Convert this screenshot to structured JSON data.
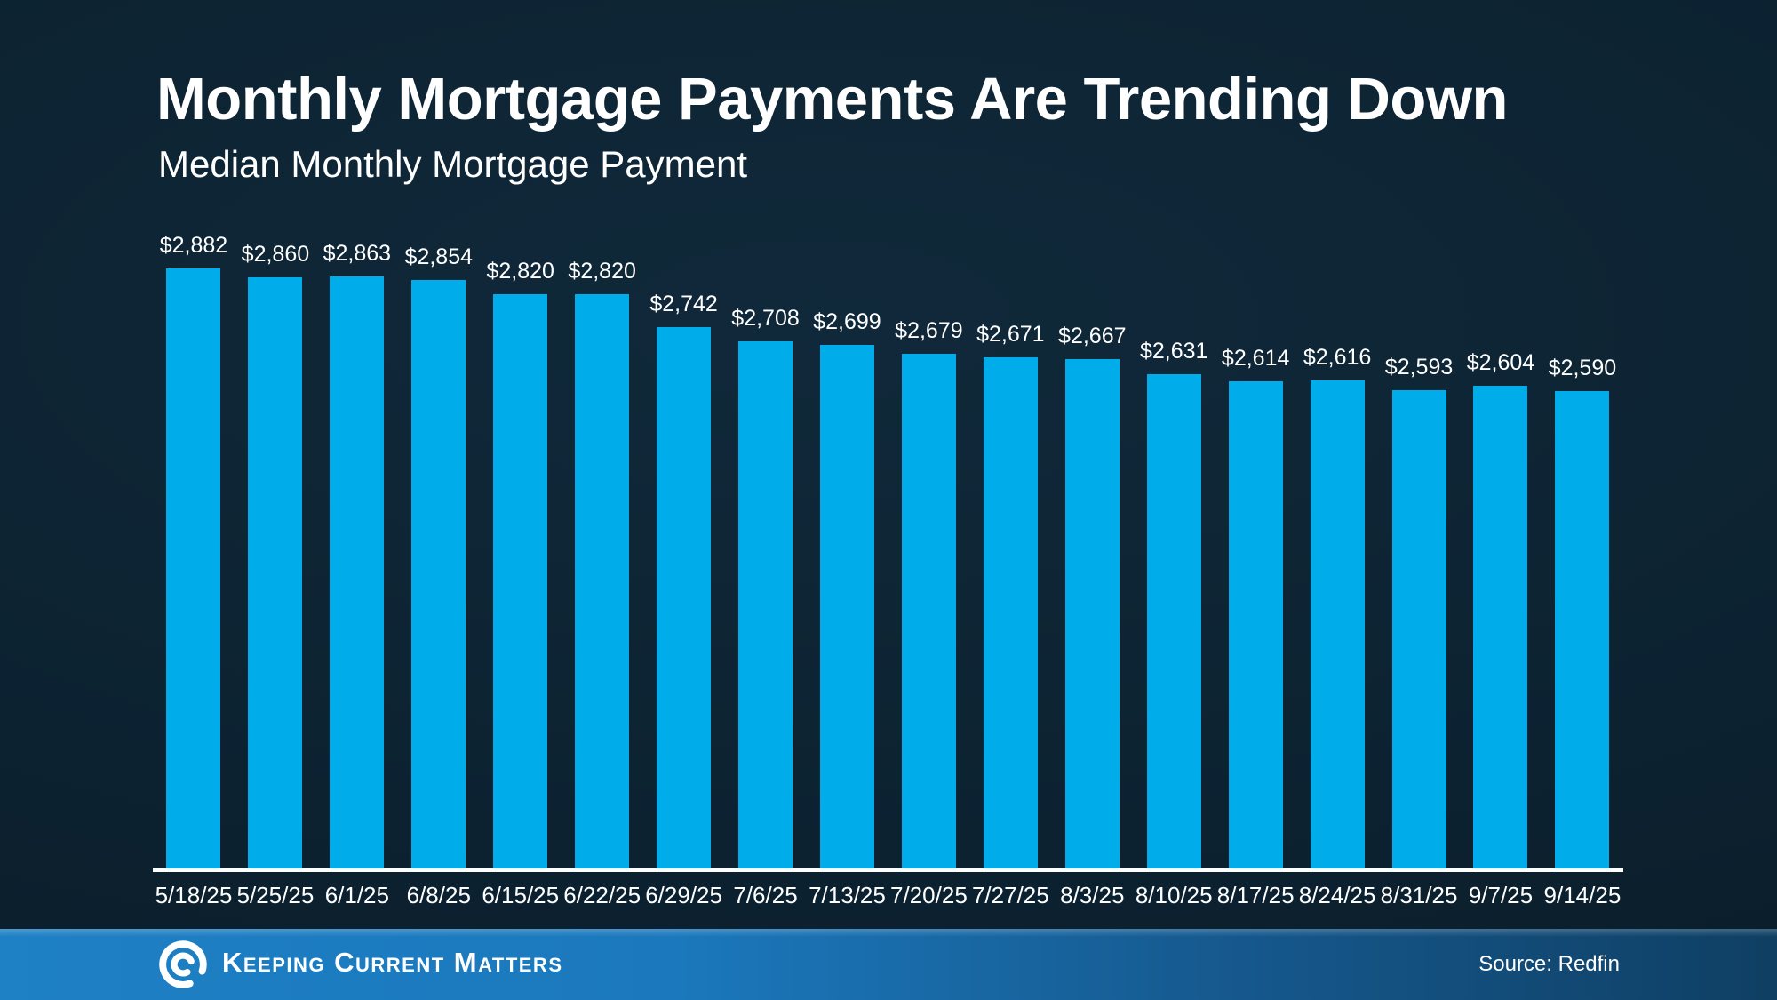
{
  "page": {
    "title": "Monthly Mortgage Payments Are Trending Down",
    "subtitle": "Median Monthly Mortgage Payment"
  },
  "chart_data": {
    "type": "bar",
    "title": "Median Monthly Mortgage Payment",
    "categories": [
      "5/18/25",
      "5/25/25",
      "6/1/25",
      "6/8/25",
      "6/15/25",
      "6/22/25",
      "6/29/25",
      "7/6/25",
      "7/13/25",
      "7/20/25",
      "7/27/25",
      "8/3/25",
      "8/10/25",
      "8/17/25",
      "8/24/25",
      "8/31/25",
      "9/7/25",
      "9/14/25"
    ],
    "values": [
      2882,
      2860,
      2863,
      2854,
      2820,
      2820,
      2742,
      2708,
      2699,
      2679,
      2671,
      2667,
      2631,
      2614,
      2616,
      2593,
      2604,
      2590
    ],
    "value_labels": [
      "$2,882",
      "$2,860",
      "$2,863",
      "$2,854",
      "$2,820",
      "$2,820",
      "$2,742",
      "$2,708",
      "$2,699",
      "$2,679",
      "$2,671",
      "$2,667",
      "$2,631",
      "$2,614",
      "$2,616",
      "$2,593",
      "$2,604",
      "$2,590"
    ],
    "xlabel": "",
    "ylabel": "",
    "ylim": [
      1460,
      2900
    ],
    "grid": false,
    "legend": false,
    "data_labels": true,
    "bar_color": "#00ace9",
    "axis_color": "#ffffff"
  },
  "footer": {
    "brand": "Keeping Current Matters",
    "logo_icon": "kcm-swirl-icon",
    "source": "Source: Redfin"
  },
  "colors": {
    "background": "#0c2231",
    "bar": "#00ace9",
    "footer_left": "#1e80c5",
    "footer_right": "#0f3f63",
    "text": "#ffffff"
  }
}
